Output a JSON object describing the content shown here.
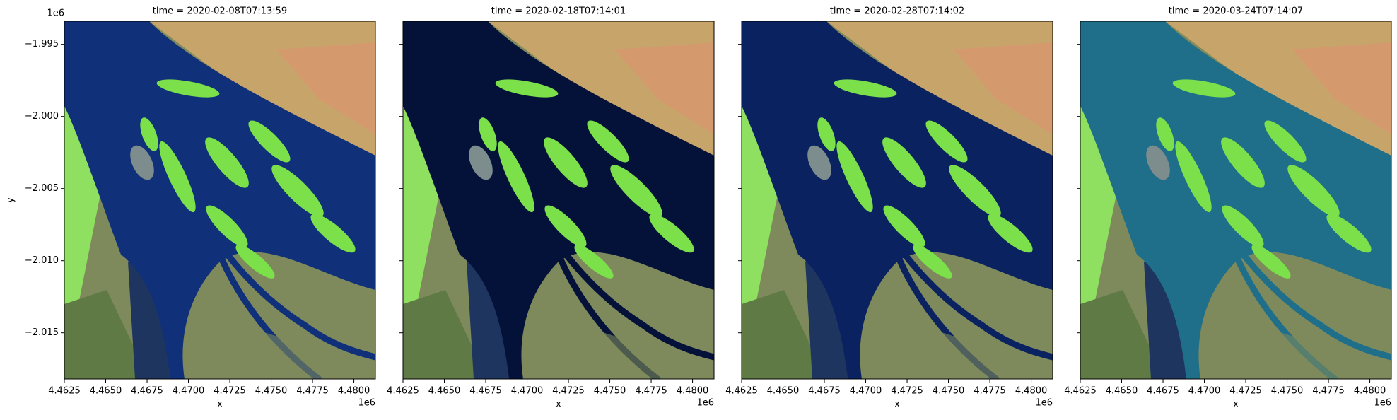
{
  "chart_data": [
    {
      "type": "image",
      "title": "time = 2020-02-08T07:13:59",
      "xlabel": "x",
      "ylabel": "y",
      "x_offset": "1e6",
      "y_offset": "1e6",
      "water_color": "#10307a",
      "xlim": [
        4.4625,
        4.4813
      ],
      "ylim": [
        -2.0182,
        -1.9934
      ],
      "xticks": [
        4.4625,
        {
          "value": 4.465,
          "label": "4.4650"
        },
        {
          "value": 4.4675,
          "label": "4.4675"
        },
        {
          "value": 4.47,
          "label": "4.4700"
        },
        4.4725,
        {
          "value": 4.475,
          "label": "4.4750"
        },
        4.4775,
        {
          "value": 4.48,
          "label": "4.4800"
        }
      ],
      "yticks": [
        {
          "value": -1.995,
          "label": "−1.995"
        },
        {
          "value": -2.0,
          "label": "−2.000"
        },
        {
          "value": -2.005,
          "label": "−2.005"
        },
        {
          "value": -2.01,
          "label": "−2.010"
        },
        {
          "value": -2.015,
          "label": "−2.015"
        }
      ]
    },
    {
      "type": "image",
      "title": "time = 2020-02-18T07:14:01",
      "xlabel": "x",
      "x_offset": "1e6",
      "water_color": "#04123a",
      "xlim": [
        4.4625,
        4.4813
      ],
      "ylim": [
        -2.0182,
        -1.9934
      ],
      "xticks": [
        4.4625,
        {
          "value": 4.465,
          "label": "4.4650"
        },
        {
          "value": 4.4675,
          "label": "4.4675"
        },
        {
          "value": 4.47,
          "label": "4.4700"
        },
        4.4725,
        {
          "value": 4.475,
          "label": "4.4750"
        },
        4.4775,
        {
          "value": 4.48,
          "label": "4.4800"
        }
      ],
      "yticks": [
        -1.995,
        -2.0,
        -2.005,
        -2.01,
        -2.015
      ]
    },
    {
      "type": "image",
      "title": "time = 2020-02-28T07:14:02",
      "xlabel": "x",
      "x_offset": "1e6",
      "water_color": "#0a2260",
      "xlim": [
        4.4625,
        4.4813
      ],
      "ylim": [
        -2.0182,
        -1.9934
      ],
      "xticks": [
        4.4625,
        {
          "value": 4.465,
          "label": "4.4650"
        },
        {
          "value": 4.4675,
          "label": "4.4675"
        },
        {
          "value": 4.47,
          "label": "4.4700"
        },
        4.4725,
        {
          "value": 4.475,
          "label": "4.4750"
        },
        4.4775,
        {
          "value": 4.48,
          "label": "4.4800"
        }
      ],
      "yticks": [
        -1.995,
        -2.0,
        -2.005,
        -2.01,
        -2.015
      ]
    },
    {
      "type": "image",
      "title": "time = 2020-03-24T07:14:07",
      "xlabel": "x",
      "x_offset": "1e6",
      "water_color": "#1f6f8a",
      "xlim": [
        4.4625,
        4.4813
      ],
      "ylim": [
        -2.0182,
        -1.9934
      ],
      "xticks": [
        4.4625,
        {
          "value": 4.465,
          "label": "4.4650"
        },
        {
          "value": 4.4675,
          "label": "4.4675"
        },
        {
          "value": 4.47,
          "label": "4.4700"
        },
        4.4725,
        {
          "value": 4.475,
          "label": "4.4750"
        },
        4.4775,
        {
          "value": 4.48,
          "label": "4.4800"
        }
      ],
      "yticks": [
        -1.995,
        -2.0,
        -2.005,
        -2.01,
        -2.015
      ]
    }
  ]
}
